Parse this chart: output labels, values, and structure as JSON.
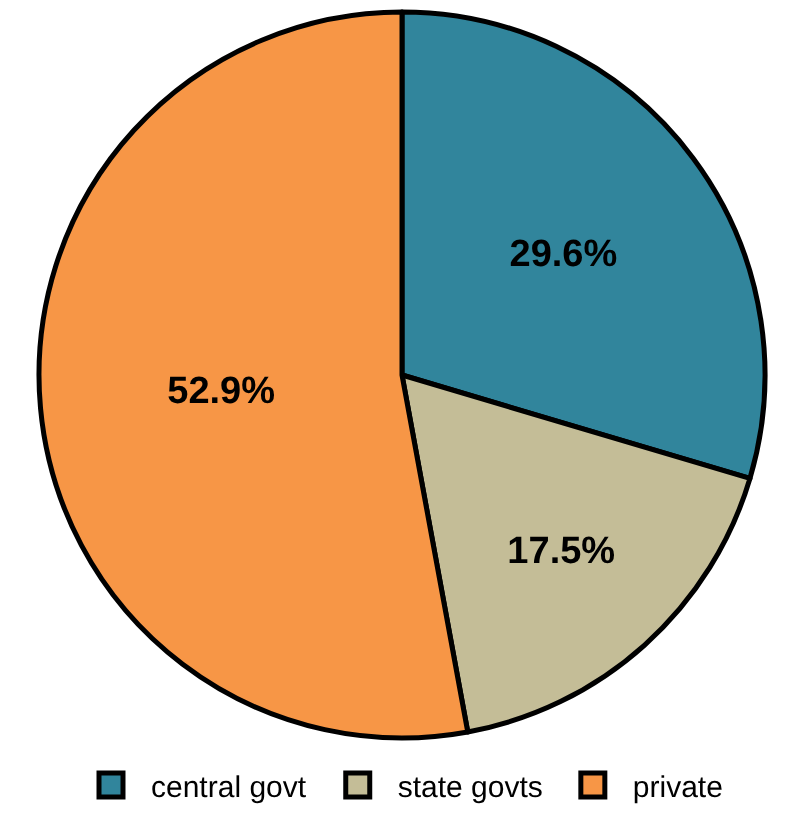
{
  "chart_data": {
    "type": "pie",
    "categories": [
      "central govt",
      "state govts",
      "private"
    ],
    "values": [
      29.6,
      17.5,
      52.9
    ],
    "value_labels": [
      "29.6%",
      "17.5%",
      "52.9%"
    ],
    "colors": [
      "#31859c",
      "#c4bd97",
      "#f79646"
    ],
    "legend": "bottom"
  }
}
